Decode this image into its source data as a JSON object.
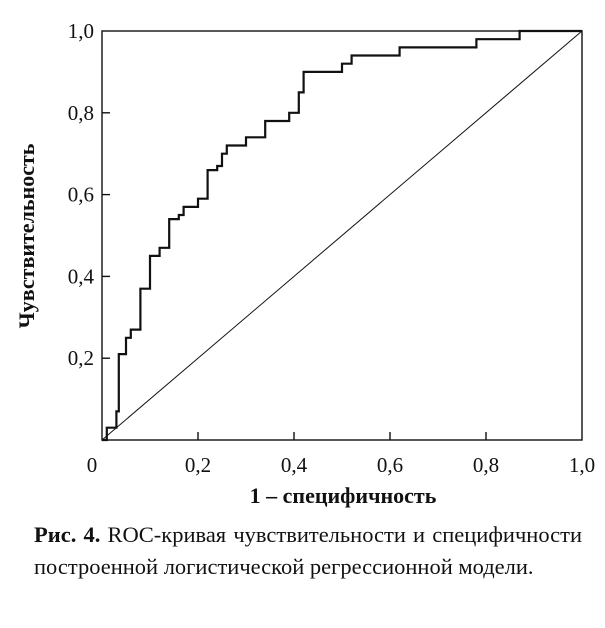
{
  "chart_data": {
    "type": "line",
    "title": "",
    "xlabel": "1 – специфичность",
    "ylabel": "Чувствительность",
    "xlim": [
      0,
      1
    ],
    "ylim": [
      0,
      1
    ],
    "x_ticks": [
      "0",
      "0,2",
      "0,4",
      "0,6",
      "0,8",
      "1,0"
    ],
    "y_ticks": [
      "0,2",
      "0,4",
      "0,6",
      "0,8",
      "1,0"
    ],
    "grid": false,
    "legend": "none",
    "series": [
      {
        "style": "step",
        "x": [
          0,
          0.01,
          0.01,
          0.03,
          0.03,
          0.035,
          0.035,
          0.05,
          0.05,
          0.06,
          0.06,
          0.08,
          0.08,
          0.1,
          0.1,
          0.12,
          0.12,
          0.13,
          0.13,
          0.14,
          0.14,
          0.16,
          0.16,
          0.17,
          0.17,
          0.2,
          0.2,
          0.22,
          0.22,
          0.24,
          0.24,
          0.25,
          0.25,
          0.26,
          0.26,
          0.3,
          0.3,
          0.33,
          0.33,
          0.34,
          0.34,
          0.39,
          0.39,
          0.41,
          0.41,
          0.42,
          0.42,
          0.5,
          0.5,
          0.52,
          0.52,
          0.6,
          0.6,
          0.62,
          0.62,
          0.78,
          0.78,
          0.87,
          0.87,
          1.0
        ],
        "y": [
          0,
          0,
          0.03,
          0.03,
          0.07,
          0.07,
          0.21,
          0.21,
          0.25,
          0.25,
          0.27,
          0.27,
          0.37,
          0.37,
          0.45,
          0.45,
          0.47,
          0.47,
          0.47,
          0.47,
          0.54,
          0.54,
          0.55,
          0.55,
          0.57,
          0.57,
          0.59,
          0.59,
          0.66,
          0.66,
          0.67,
          0.67,
          0.7,
          0.7,
          0.72,
          0.72,
          0.74,
          0.74,
          0.74,
          0.74,
          0.78,
          0.78,
          0.8,
          0.8,
          0.85,
          0.85,
          0.9,
          0.9,
          0.92,
          0.92,
          0.94,
          0.94,
          0.94,
          0.94,
          0.96,
          0.96,
          0.98,
          0.98,
          1.0,
          1.0
        ]
      },
      {
        "style": "diagonal",
        "x": [
          0,
          1
        ],
        "y": [
          0,
          1
        ]
      }
    ]
  },
  "caption": {
    "label": "Рис. 4.",
    "text": " ROC-кривая чувствительности и специфичности построенной логистической регрессионной модели."
  }
}
